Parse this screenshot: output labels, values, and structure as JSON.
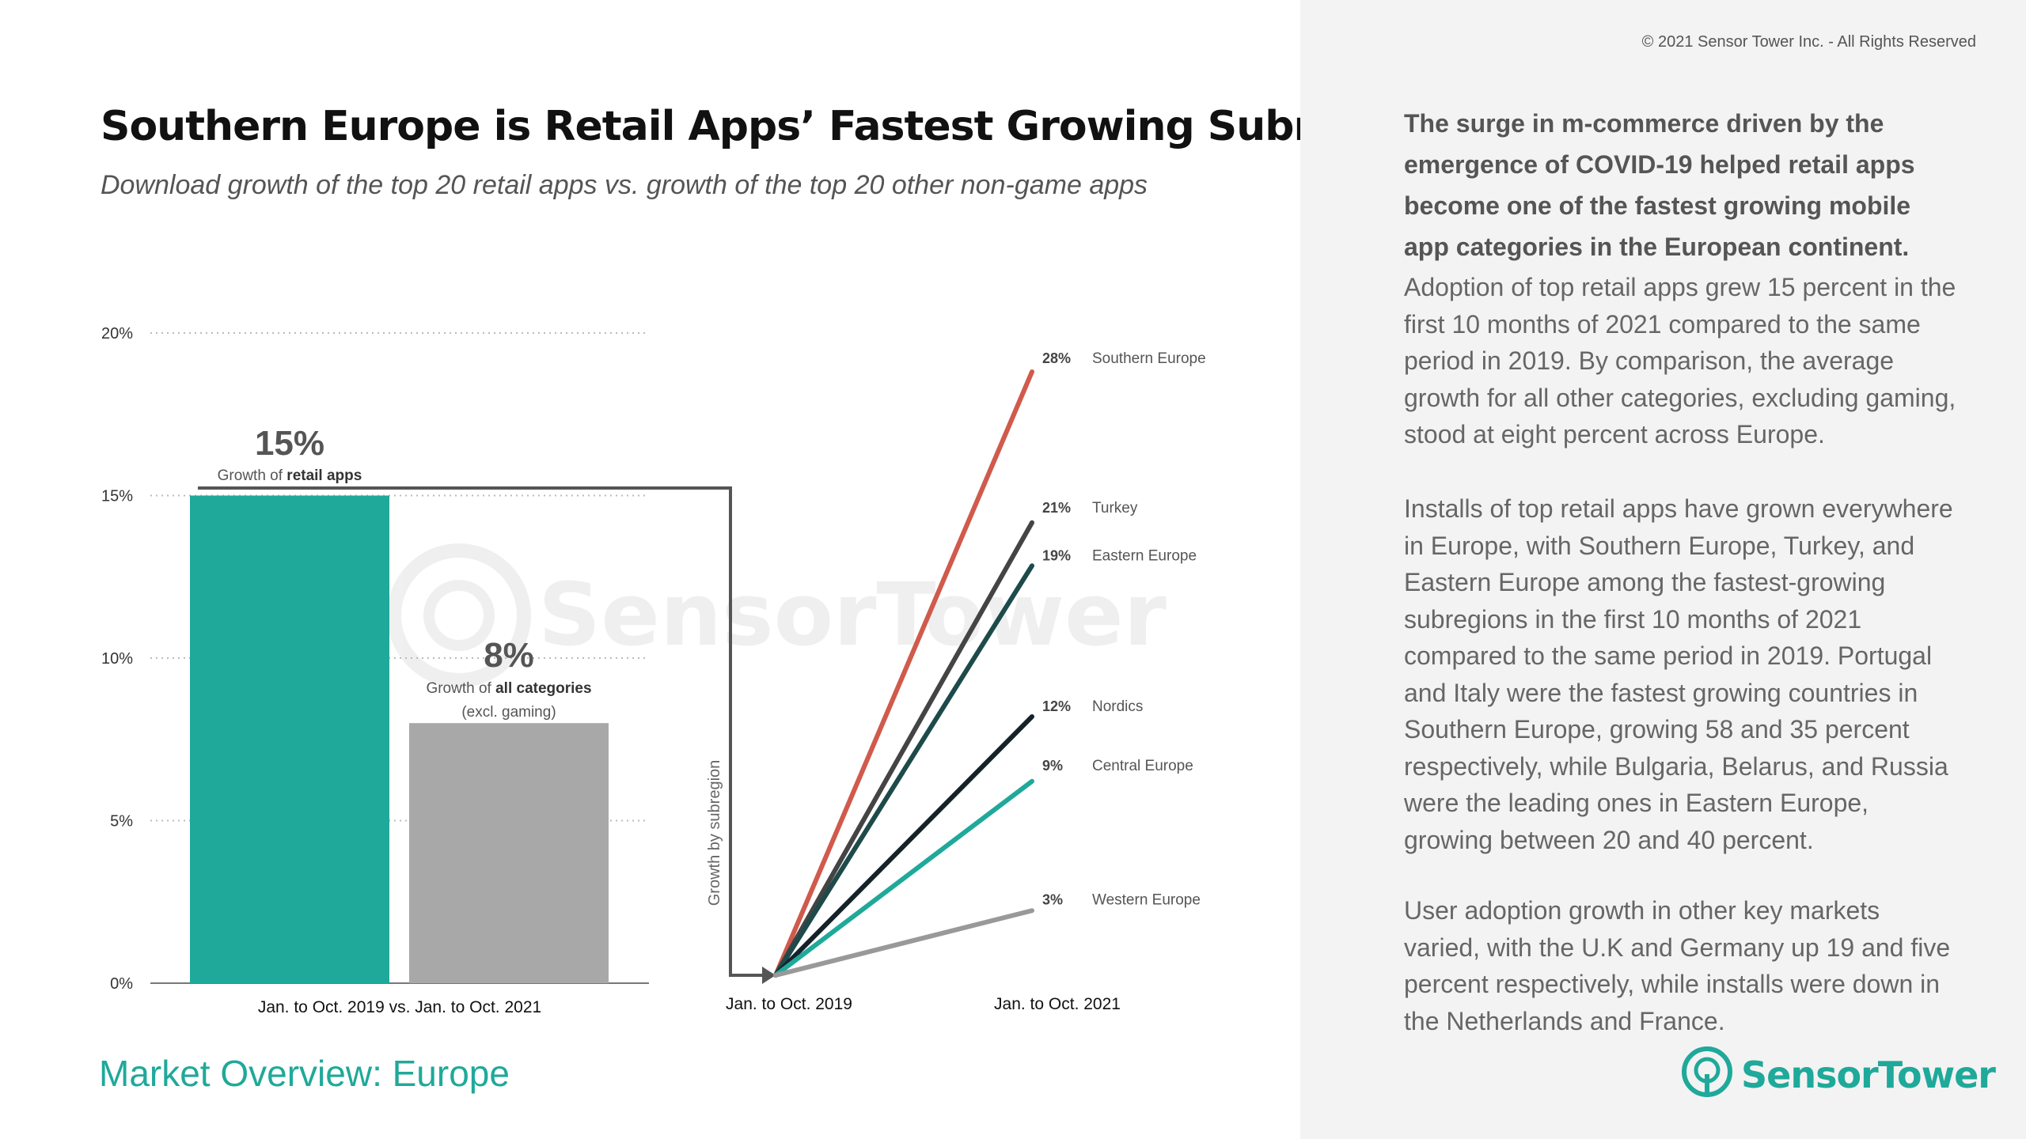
{
  "copyright": "© 2021 Sensor Tower Inc. - All Rights Reserved",
  "title": "Southern Europe is Retail Apps’ Fastest Growing Subregion",
  "subtitle": "Download growth of the top 20 retail apps vs. growth of the top 20 other non-game apps",
  "footer_title": "Market Overview: Europe",
  "logo": {
    "text": "SensorTower",
    "icon": "sensor-tower-logo-icon",
    "color": "#1fa99a"
  },
  "watermark": "SensorTower",
  "commentary": {
    "lead": "The surge in m-commerce driven by the emergence of COVID-19 helped retail apps become one of the fastest growing mobile app categories in the European continent.",
    "p1": "Adoption of top retail apps grew 15 percent in the first 10 months of 2021 compared to the same period in 2019. By comparison, the average growth for all other categories, excluding gaming, stood at eight percent across Europe.",
    "p2": "Installs of top retail apps have grown everywhere in Europe, with Southern Europe, Turkey, and Eastern Europe among the fastest-growing subregions in the first 10 months of 2021 compared to the same period in 2019. Portugal and Italy were the fastest growing countries in Southern Europe, growing 58 and 35 percent respectively, while Bulgaria, Belarus, and Russia were the leading ones in Eastern Europe, growing between 20 and 40 percent.",
    "p3": "User adoption growth in other key markets varied, with the U.K and Germany up 19 and five percent respectively, while installs were down in the Netherlands and France."
  },
  "chart_data": [
    {
      "type": "bar",
      "categories": [
        "retail apps",
        "all categories"
      ],
      "values": [
        15,
        8
      ],
      "value_labels": [
        "15%",
        "8%"
      ],
      "bar_captions": [
        {
          "prefix": "Growth of ",
          "bold": "retail apps",
          "line2": ""
        },
        {
          "prefix": "Growth of ",
          "bold": "all categories",
          "line2": "(excl. gaming)"
        }
      ],
      "colors": [
        "#1fa99a",
        "#a8a8a8"
      ],
      "xlabel": "Jan. to Oct. 2019 vs. Jan. to Oct. 2021",
      "ylim": [
        0,
        20
      ],
      "yticks": [
        0,
        5,
        10,
        15,
        20
      ],
      "ytick_labels": [
        "0%",
        "5%",
        "10%",
        "15%",
        "20%"
      ],
      "grid": true
    },
    {
      "type": "line",
      "axis_label": "Growth by subregion",
      "x": [
        "Jan. to Oct. 2019",
        "Jan. to Oct. 2021"
      ],
      "ylim": [
        0,
        30
      ],
      "series": [
        {
          "name": "Southern Europe",
          "values": [
            0,
            28
          ],
          "label": "28%",
          "color": "#d05a4c"
        },
        {
          "name": "Turkey",
          "values": [
            0,
            21
          ],
          "label": "21%",
          "color": "#444444"
        },
        {
          "name": "Eastern Europe",
          "values": [
            0,
            19
          ],
          "label": "19%",
          "color": "#1d4a4a"
        },
        {
          "name": "Nordics",
          "values": [
            0,
            12
          ],
          "label": "12%",
          "color": "#15222a"
        },
        {
          "name": "Central Europe",
          "values": [
            0,
            9
          ],
          "label": "9%",
          "color": "#1fa99a"
        },
        {
          "name": "Western Europe",
          "values": [
            0,
            3
          ],
          "label": "3%",
          "color": "#999999"
        }
      ]
    }
  ]
}
